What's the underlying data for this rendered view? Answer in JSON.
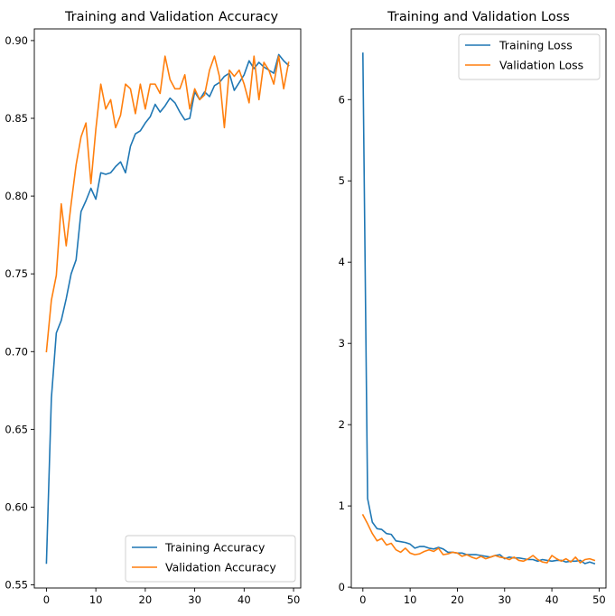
{
  "chart_data": [
    {
      "type": "line",
      "title": "Training and Validation Accuracy",
      "xlabel": "",
      "ylabel": "",
      "xlim": [
        -2.45,
        51.45
      ],
      "ylim": [
        0.548,
        0.9075
      ],
      "xticks": [
        0,
        10,
        20,
        30,
        40,
        50
      ],
      "xtick_labels": [
        "0",
        "10",
        "20",
        "30",
        "40",
        "50"
      ],
      "yticks": [
        0.55,
        0.6,
        0.65,
        0.7,
        0.75,
        0.8,
        0.85,
        0.9
      ],
      "ytick_labels": [
        "0.55",
        "0.60",
        "0.65",
        "0.70",
        "0.75",
        "0.80",
        "0.85",
        "0.90"
      ],
      "legend_position": "lower-right",
      "series": [
        {
          "name": "Training Accuracy",
          "color": "#1f77b4",
          "x": [
            0,
            1,
            2,
            3,
            4,
            5,
            6,
            7,
            8,
            9,
            10,
            11,
            12,
            13,
            14,
            15,
            16,
            17,
            18,
            19,
            20,
            21,
            22,
            23,
            24,
            25,
            26,
            27,
            28,
            29,
            30,
            31,
            32,
            33,
            34,
            35,
            36,
            37,
            38,
            39,
            40,
            41,
            42,
            43,
            44,
            45,
            46,
            47,
            48,
            49
          ],
          "values": [
            0.564,
            0.67,
            0.712,
            0.72,
            0.734,
            0.75,
            0.759,
            0.79,
            0.797,
            0.805,
            0.798,
            0.815,
            0.814,
            0.815,
            0.819,
            0.822,
            0.815,
            0.832,
            0.84,
            0.842,
            0.847,
            0.851,
            0.859,
            0.854,
            0.858,
            0.863,
            0.86,
            0.854,
            0.849,
            0.85,
            0.867,
            0.862,
            0.867,
            0.864,
            0.871,
            0.873,
            0.877,
            0.879,
            0.868,
            0.873,
            0.878,
            0.887,
            0.882,
            0.886,
            0.883,
            0.881,
            0.879,
            0.891,
            0.887,
            0.884
          ]
        },
        {
          "name": "Validation Accuracy",
          "color": "#ff7f0e",
          "x": [
            0,
            1,
            2,
            3,
            4,
            5,
            6,
            7,
            8,
            9,
            10,
            11,
            12,
            13,
            14,
            15,
            16,
            17,
            18,
            19,
            20,
            21,
            22,
            23,
            24,
            25,
            26,
            27,
            28,
            29,
            30,
            31,
            32,
            33,
            34,
            35,
            36,
            37,
            38,
            39,
            40,
            41,
            42,
            43,
            44,
            45,
            46,
            47,
            48,
            49
          ],
          "values": [
            0.7,
            0.733,
            0.749,
            0.795,
            0.768,
            0.795,
            0.82,
            0.838,
            0.847,
            0.808,
            0.843,
            0.872,
            0.856,
            0.862,
            0.844,
            0.852,
            0.872,
            0.869,
            0.853,
            0.872,
            0.856,
            0.872,
            0.872,
            0.866,
            0.89,
            0.875,
            0.869,
            0.869,
            0.878,
            0.856,
            0.869,
            0.862,
            0.865,
            0.881,
            0.89,
            0.877,
            0.844,
            0.881,
            0.877,
            0.881,
            0.872,
            0.86,
            0.89,
            0.862,
            0.886,
            0.881,
            0.872,
            0.89,
            0.869,
            0.886
          ]
        }
      ]
    },
    {
      "type": "line",
      "title": "Training and Validation Loss",
      "xlabel": "",
      "ylabel": "",
      "xlim": [
        -2.45,
        51.45
      ],
      "ylim": [
        -0.01,
        6.87
      ],
      "xticks": [
        0,
        10,
        20,
        30,
        40,
        50
      ],
      "xtick_labels": [
        "0",
        "10",
        "20",
        "30",
        "40",
        "50"
      ],
      "yticks": [
        0,
        1,
        2,
        3,
        4,
        5,
        6
      ],
      "ytick_labels": [
        "0",
        "1",
        "2",
        "3",
        "4",
        "5",
        "6"
      ],
      "legend_position": "upper-right",
      "series": [
        {
          "name": "Training Loss",
          "color": "#1f77b4",
          "x": [
            0,
            1,
            2,
            3,
            4,
            5,
            6,
            7,
            8,
            9,
            10,
            11,
            12,
            13,
            14,
            15,
            16,
            17,
            18,
            19,
            20,
            21,
            22,
            23,
            24,
            25,
            26,
            27,
            28,
            29,
            30,
            31,
            32,
            33,
            34,
            35,
            36,
            37,
            38,
            39,
            40,
            41,
            42,
            43,
            44,
            45,
            46,
            47,
            48,
            49
          ],
          "values": [
            6.57,
            1.09,
            0.8,
            0.72,
            0.71,
            0.66,
            0.65,
            0.57,
            0.56,
            0.55,
            0.53,
            0.48,
            0.5,
            0.5,
            0.48,
            0.47,
            0.49,
            0.47,
            0.43,
            0.43,
            0.42,
            0.42,
            0.4,
            0.4,
            0.4,
            0.39,
            0.38,
            0.37,
            0.39,
            0.4,
            0.35,
            0.37,
            0.36,
            0.36,
            0.35,
            0.34,
            0.34,
            0.32,
            0.34,
            0.33,
            0.32,
            0.33,
            0.33,
            0.31,
            0.32,
            0.32,
            0.33,
            0.29,
            0.31,
            0.29
          ]
        },
        {
          "name": "Validation Loss",
          "color": "#ff7f0e",
          "x": [
            0,
            1,
            2,
            3,
            4,
            5,
            6,
            7,
            8,
            9,
            10,
            11,
            12,
            13,
            14,
            15,
            16,
            17,
            18,
            19,
            20,
            21,
            22,
            23,
            24,
            25,
            26,
            27,
            28,
            29,
            30,
            31,
            32,
            33,
            34,
            35,
            36,
            37,
            38,
            39,
            40,
            41,
            42,
            43,
            44,
            45,
            46,
            47,
            48,
            49
          ],
          "values": [
            0.89,
            0.78,
            0.66,
            0.57,
            0.6,
            0.52,
            0.54,
            0.46,
            0.43,
            0.48,
            0.42,
            0.4,
            0.41,
            0.44,
            0.46,
            0.44,
            0.48,
            0.4,
            0.41,
            0.43,
            0.42,
            0.38,
            0.4,
            0.37,
            0.35,
            0.38,
            0.35,
            0.37,
            0.39,
            0.37,
            0.36,
            0.34,
            0.37,
            0.33,
            0.32,
            0.35,
            0.39,
            0.34,
            0.31,
            0.3,
            0.39,
            0.35,
            0.32,
            0.35,
            0.31,
            0.37,
            0.3,
            0.34,
            0.35,
            0.33
          ]
        }
      ]
    }
  ]
}
